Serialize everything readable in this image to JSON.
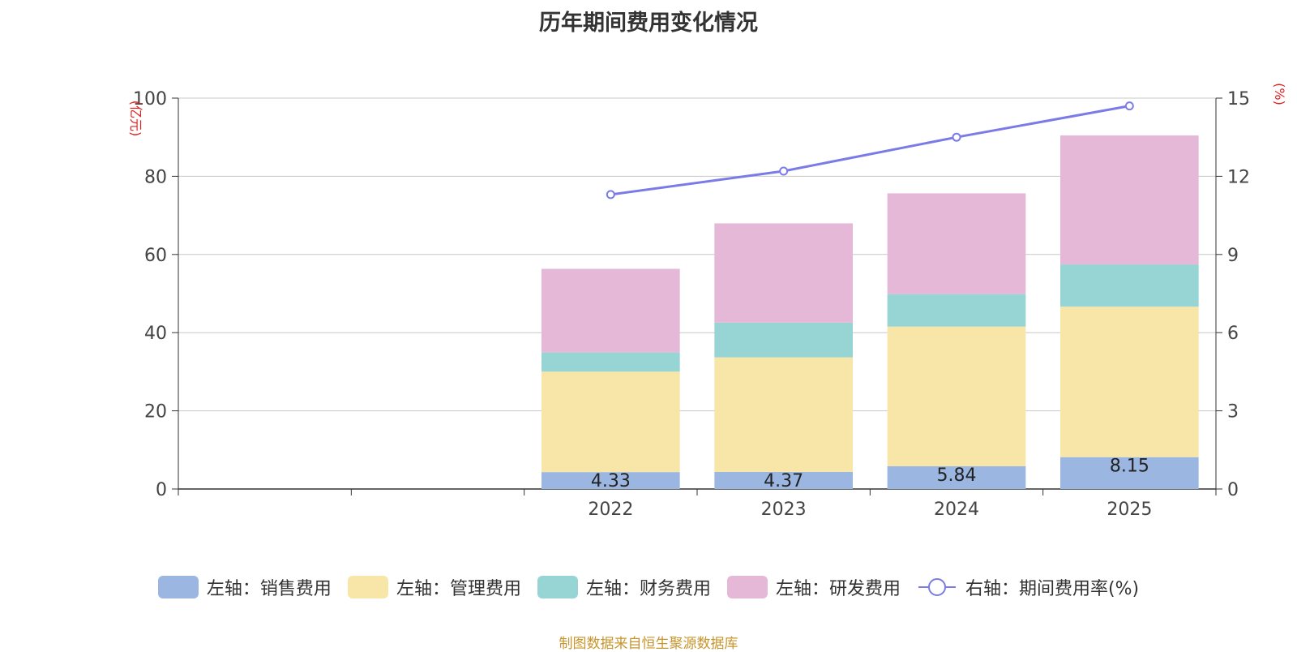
{
  "chart_data": {
    "type": "bar",
    "title": "历年期间费用变化情况",
    "categories": [
      "",
      "",
      "2022",
      "2023",
      "2024",
      "2025"
    ],
    "ylabel": "(亿元)",
    "y2label": "(%)",
    "ylim": [
      0,
      100
    ],
    "y2lim": [
      0,
      15
    ],
    "yticks": [
      "0",
      "20",
      "40",
      "60",
      "80",
      "100"
    ],
    "y2ticks": [
      "0",
      "3",
      "6",
      "9",
      "12",
      "15"
    ],
    "stacked": true,
    "series": [
      {
        "name": "左轴：销售费用",
        "axis": "left",
        "color": "#9bb7e1",
        "values": [
          null,
          null,
          4.33,
          4.37,
          5.84,
          8.15
        ],
        "labels": [
          "",
          "",
          "4.33",
          "4.37",
          "5.84",
          "8.15"
        ]
      },
      {
        "name": "左轴：管理费用",
        "axis": "left",
        "color": "#f8e6a8",
        "values": [
          null,
          null,
          25.7,
          29.3,
          35.7,
          38.5
        ]
      },
      {
        "name": "左轴：财务费用",
        "axis": "left",
        "color": "#97d4d4",
        "values": [
          null,
          null,
          4.9,
          8.9,
          8.3,
          10.8
        ]
      },
      {
        "name": "左轴：研发费用",
        "axis": "left",
        "color": "#e6b8d8",
        "values": [
          null,
          null,
          21.4,
          25.4,
          25.8,
          33.0
        ]
      },
      {
        "name": "右轴：期间费用率(%)",
        "axis": "right",
        "type": "line",
        "color": "#7b7be8",
        "values": [
          null,
          null,
          11.3,
          12.2,
          13.5,
          14.7
        ]
      }
    ]
  },
  "footer": "制图数据来自恒生聚源数据库"
}
